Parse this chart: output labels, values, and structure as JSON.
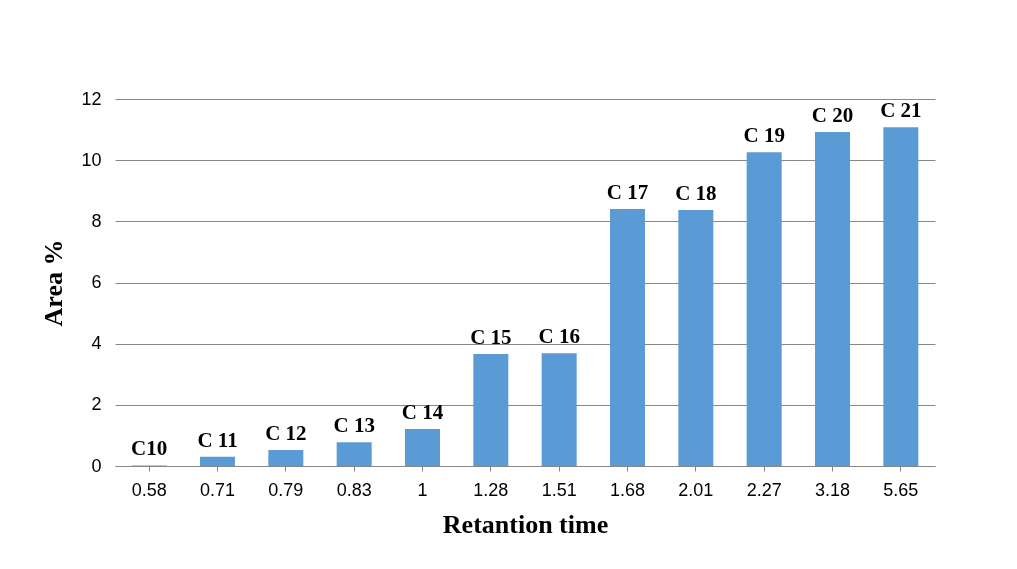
{
  "chart_data": {
    "type": "bar",
    "xlabel": "Retantion time",
    "ylabel": "Area %",
    "categories": [
      "0.58",
      "0.71",
      "0.79",
      "0.83",
      "1",
      "1.28",
      "1.51",
      "1.68",
      "2.01",
      "2.27",
      "3.18",
      "5.65"
    ],
    "values": [
      0.02,
      0.3,
      0.52,
      0.78,
      1.21,
      3.66,
      3.69,
      8.4,
      8.37,
      10.26,
      10.92,
      11.08
    ],
    "color": "#5b9bd5",
    "ylim": [
      0,
      12
    ],
    "yticks": [
      0,
      2,
      4,
      6,
      8,
      10,
      12
    ],
    "grid": "y",
    "annotations": [
      {
        "text": "C10",
        "x": "0.58",
        "y": 0.02
      },
      {
        "text": "C 11",
        "x": "0.71",
        "y": 0.3
      },
      {
        "text": "C 12",
        "x": "0.79",
        "y": 0.52
      },
      {
        "text": "C 13",
        "x": "0.83",
        "y": 0.78
      },
      {
        "text": "C 14",
        "x": "1",
        "y": 1.21
      },
      {
        "text": "C 15",
        "x": "1.28",
        "y": 3.66
      },
      {
        "text": "C 16",
        "x": "1.51",
        "y": 3.69
      },
      {
        "text": "C 17",
        "x": "1.68",
        "y": 8.4
      },
      {
        "text": "C 18",
        "x": "2.01",
        "y": 8.37
      },
      {
        "text": "C 19",
        "x": "2.27",
        "y": 10.26
      },
      {
        "text": "C 20",
        "x": "3.18",
        "y": 10.92
      },
      {
        "text": "C 21",
        "x": "5.65",
        "y": 11.08
      }
    ]
  }
}
